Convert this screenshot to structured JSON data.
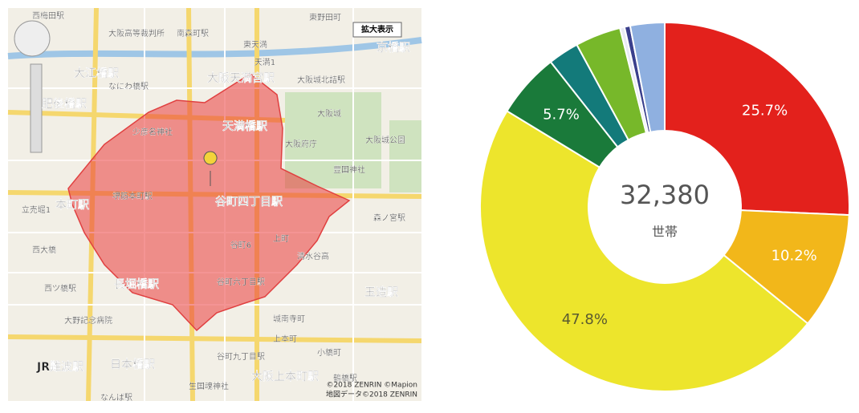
{
  "map": {
    "button": "拡大表示",
    "copyright": [
      "©2018 ZENRIN ©Mapion",
      "地図データ©2018 ZENRIN"
    ],
    "labels": [
      "西梅田駅",
      "大阪高等裁判所",
      "南森町駅",
      "東野田町",
      "東天満",
      "京橋駅",
      "天満1",
      "大江橋駅",
      "なにわ橋駅",
      "大阪天満宮駅",
      "大阪城北詰駅",
      "肥後橋駅",
      "少彦名神社",
      "天満橋駅",
      "大阪城",
      "大阪府庁",
      "大阪城公園",
      "豊国神社",
      "堺筋本町駅",
      "谷町四丁目駅",
      "森ノ宮駅",
      "本町駅",
      "立売堀1",
      "西大橋",
      "谷町6",
      "上町",
      "清水谷高",
      "長堀橋駅",
      "谷町六丁目駅",
      "玉造駅",
      "西ツ橋駅",
      "大野記念病院",
      "城南寺町",
      "日本橋駅",
      "谷町九丁目駅",
      "上本町",
      "小橋町",
      "大阪上本町駅",
      "鶴橋駅",
      "JR難波駅",
      "なんば駅",
      "生国魂神社"
    ]
  },
  "chart_data": {
    "type": "donut",
    "center_value": "32,380",
    "center_label": "世帯",
    "categories": [
      null,
      null,
      null,
      null,
      null,
      null,
      null,
      null,
      null
    ],
    "values": [
      25.7,
      10.2,
      47.8,
      5.7,
      2.7,
      4.0,
      0.4,
      0.5,
      3.0
    ],
    "value_labels": [
      "25.7%",
      "10.2%",
      "47.8%",
      "5.7%",
      null,
      null,
      null,
      null,
      null
    ],
    "colors": [
      "#e3211c",
      "#f2b71a",
      "#ede52c",
      "#1a7a3a",
      "#137a7a",
      "#77b82a",
      "#e8eaf4",
      "#3a3f8c",
      "#8fb0e0"
    ]
  }
}
